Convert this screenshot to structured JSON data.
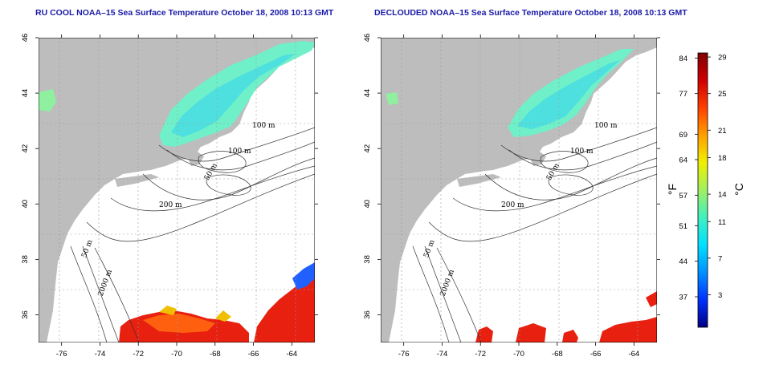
{
  "panels": [
    {
      "id": "left",
      "title": "RU COOL NOAA–15 Sea Surface Temperature October 18, 2008 10:13 GMT"
    },
    {
      "id": "right",
      "title": "DECLOUDED NOAA–15 Sea Surface Temperature October 18, 2008 10:13 GMT"
    }
  ],
  "axes": {
    "lon_ticks": [
      "-76",
      "-74",
      "-72",
      "-70",
      "-68",
      "-66",
      "-64"
    ],
    "lat_ticks": [
      "46",
      "44",
      "42",
      "40",
      "38",
      "36"
    ],
    "lon_range": [
      -77.2,
      -62.8
    ],
    "lat_range": [
      35,
      46
    ]
  },
  "contour_labels": [
    "100 m",
    "100 m",
    "50 m",
    "200 m",
    "50 m",
    "2000 m"
  ],
  "colorbar": {
    "fahrenheit_ticks": [
      "84",
      "77",
      "69",
      "64",
      "57",
      "51",
      "44",
      "37"
    ],
    "celsius_ticks": [
      "29",
      "25",
      "21",
      "18",
      "14",
      "11",
      "7",
      "3"
    ],
    "fahrenheit_unit": "°F",
    "celsius_unit": "°C",
    "colors": [
      "#000080",
      "#0030ff",
      "#0090ff",
      "#00e0ff",
      "#40f0c0",
      "#a0f060",
      "#f0f000",
      "#ffa000",
      "#ff4000",
      "#d00000",
      "#800000"
    ]
  },
  "style": {
    "land_color": "#bdbdbd",
    "water_color": "#ffffff",
    "grid_color": "#9a9a9a",
    "title_color": "#1a1aa8"
  }
}
